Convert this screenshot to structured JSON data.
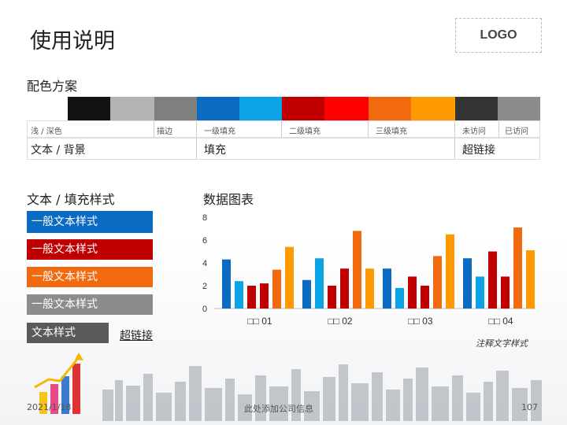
{
  "header": {
    "title": "使用说明",
    "logo": "LOGO"
  },
  "scheme": {
    "title": "配色方案",
    "swatch_colors": [
      "#ffffff",
      "#121212",
      "#b3b3b3",
      "#7f7f7f",
      "#0b6bc2",
      "#0ba3e6",
      "#c00000",
      "#ff0000",
      "#f26a10",
      "#ff9900",
      "#333333",
      "#8c8c8c"
    ],
    "labels": [
      "浅 / 深色",
      "描边",
      "一级填充",
      "二级填充",
      "三级填充",
      "未访问",
      "已访问"
    ],
    "categories": [
      "文本 / 背景",
      "填充",
      "超链接"
    ]
  },
  "styles": {
    "title": "文本 / 填充样式",
    "boxes": [
      {
        "label": "一般文本样式",
        "color": "#0b6bc2"
      },
      {
        "label": "一般文本样式",
        "color": "#c00000"
      },
      {
        "label": "一般文本样式",
        "color": "#f26a10"
      },
      {
        "label": "一般文本样式",
        "color": "#8c8c8c"
      },
      {
        "label": "文本样式",
        "color": "#5a5a5a"
      }
    ],
    "link": "超链接"
  },
  "chart_data": {
    "type": "bar",
    "title": "数据图表",
    "categories": [
      "□□ 01",
      "□□ 02",
      "□□ 03",
      "□□ 04"
    ],
    "ylim": [
      0,
      8
    ],
    "yticks": [
      0,
      2,
      4,
      6,
      8
    ],
    "series": [
      {
        "color": "#0b6bc2",
        "values": [
          4.3,
          2.5,
          3.5,
          4.4
        ]
      },
      {
        "color": "#0ba3e6",
        "values": [
          2.4,
          4.4,
          1.8,
          2.8
        ]
      },
      {
        "color": "#c00000",
        "values": [
          2.0,
          2.0,
          2.8,
          5.0
        ]
      },
      {
        "color": "#c00000",
        "values": [
          2.2,
          3.5,
          2.0,
          2.8
        ]
      },
      {
        "color": "#f26a10",
        "values": [
          3.4,
          6.8,
          4.6,
          7.1
        ]
      },
      {
        "color": "#ff9900",
        "values": [
          5.4,
          3.5,
          6.5,
          5.1
        ]
      }
    ],
    "note": "注释文字样式"
  },
  "footer": {
    "date": "2021/1/18",
    "company": "此处添加公司信息",
    "page": "107"
  }
}
